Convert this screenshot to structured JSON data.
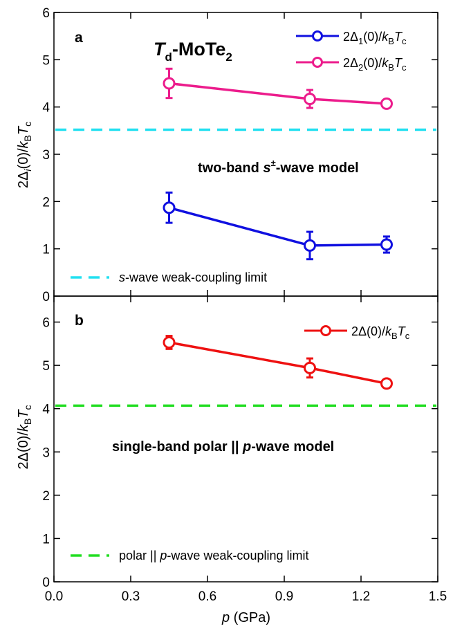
{
  "chart_data": [
    {
      "type": "line",
      "panel_label": "a",
      "material": {
        "main": "T",
        "sub": "d",
        "rest": "-MoTe",
        "sub2": "2"
      },
      "model_text": {
        "pre": "two-band ",
        "it": "s",
        "sup": "±",
        "post": "-wave model"
      },
      "ylabel": {
        "pre": "2Δ",
        "isub": "i",
        "mid": "(0)/",
        "k": "k",
        "ksub": "B",
        "T": "T",
        "tsub": "c"
      },
      "xlim": [
        0,
        1.5
      ],
      "ylim": [
        0,
        6
      ],
      "yticks": [
        "0",
        "1",
        "2",
        "3",
        "4",
        "5",
        "6"
      ],
      "x": [
        0.45,
        1.0,
        1.3
      ],
      "series": [
        {
          "values": [
            1.87,
            1.07,
            1.09
          ],
          "err": [
            0.32,
            0.29,
            0.17
          ],
          "color": "#1010e0",
          "legend": {
            "pre": "2Δ",
            "sub": "1",
            "mid": "(0)/",
            "k": "k",
            "ksub": "B",
            "T": "T",
            "tsub": "c"
          }
        },
        {
          "values": [
            4.5,
            4.17,
            4.07
          ],
          "err": [
            0.31,
            0.19,
            0.07
          ],
          "color": "#ec1c8c",
          "legend": {
            "pre": "2Δ",
            "sub": "2",
            "mid": "(0)/",
            "k": "k",
            "ksub": "B",
            "T": "T",
            "tsub": "c"
          }
        }
      ],
      "reference": {
        "value": 3.52,
        "color": "#22e0f0",
        "legend": {
          "it": "s",
          "rest": "-wave weak-coupling limit"
        }
      },
      "legend_position": "top-right"
    },
    {
      "type": "line",
      "panel_label": "b",
      "model_text": {
        "pre": "single-band polar || ",
        "it": "p",
        "post": "-wave model"
      },
      "ylabel": {
        "pre": "2Δ",
        "mid": "(0)/",
        "k": "k",
        "ksub": "B",
        "T": "T",
        "tsub": "c"
      },
      "xlabel": {
        "it": "p",
        "rest": " (GPa)"
      },
      "xlim": [
        0,
        1.5
      ],
      "ylim": [
        0,
        6.6
      ],
      "xticks": [
        "0.0",
        "0.3",
        "0.6",
        "0.9",
        "1.2",
        "1.5"
      ],
      "yticks": [
        "0",
        "1",
        "2",
        "3",
        "4",
        "5",
        "6"
      ],
      "x": [
        0.45,
        1.0,
        1.3
      ],
      "series": [
        {
          "values": [
            5.53,
            4.94,
            4.58
          ],
          "err": [
            0.15,
            0.22,
            0.08
          ],
          "color": "#ee1111",
          "legend": {
            "pre": "2Δ",
            "mid": "(0)/",
            "k": "k",
            "ksub": "B",
            "T": "T",
            "tsub": "c"
          }
        }
      ],
      "reference": {
        "value": 4.07,
        "color": "#22dd22",
        "legend": {
          "pre": "polar || ",
          "it": "p",
          "rest": "-wave weak-coupling limit"
        }
      },
      "legend_position": "top-right"
    }
  ]
}
